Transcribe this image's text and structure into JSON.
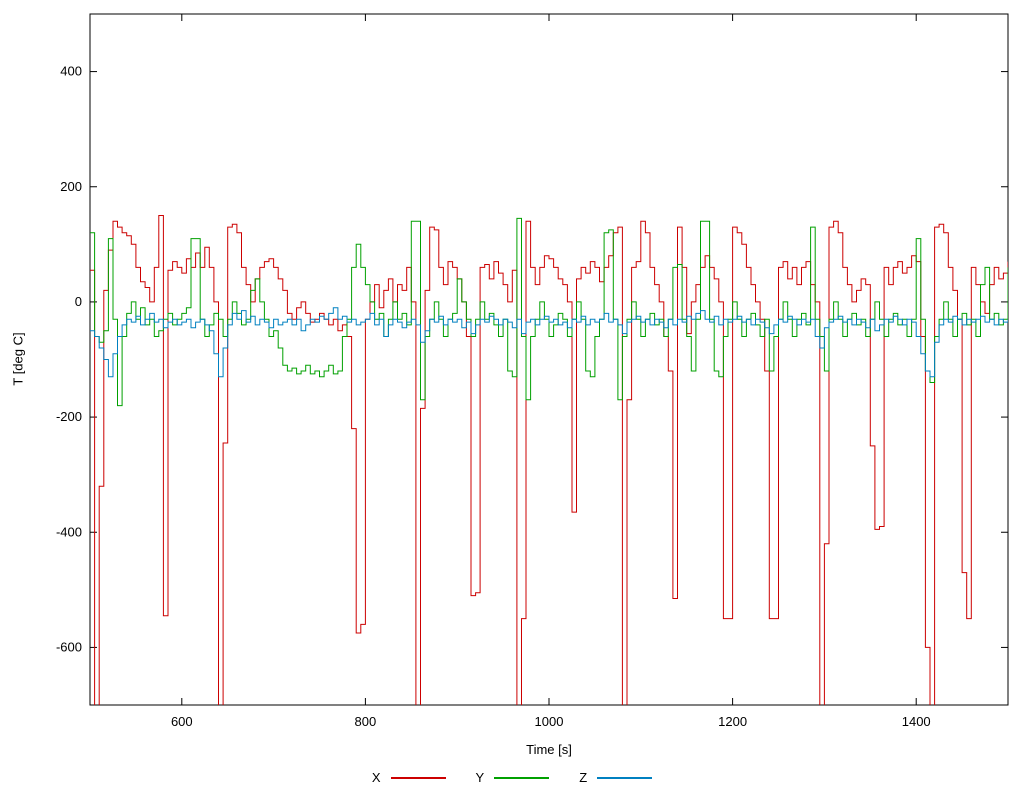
{
  "axes": {
    "xlabel": "Time [s]",
    "ylabel": "T [deg C]"
  },
  "chart_data": {
    "type": "line",
    "title": "",
    "xlabel": "Time [s]",
    "ylabel": "T [deg C]",
    "xlim": [
      500,
      1500
    ],
    "ylim": [
      -700,
      500
    ],
    "x_ticks": [
      600,
      800,
      1000,
      1200,
      1400
    ],
    "y_ticks": [
      400,
      200,
      0,
      -200,
      -400,
      -600
    ],
    "grid": false,
    "legend_position": "bottom",
    "line_style": "steps",
    "x": [
      500,
      505,
      510,
      515,
      520,
      525,
      530,
      535,
      540,
      545,
      550,
      555,
      560,
      565,
      570,
      575,
      580,
      585,
      590,
      595,
      600,
      605,
      610,
      615,
      620,
      625,
      630,
      635,
      640,
      645,
      650,
      655,
      660,
      665,
      670,
      675,
      680,
      685,
      690,
      695,
      700,
      705,
      710,
      715,
      720,
      725,
      730,
      735,
      740,
      745,
      750,
      755,
      760,
      765,
      770,
      775,
      780,
      785,
      790,
      795,
      800,
      805,
      810,
      815,
      820,
      825,
      830,
      835,
      840,
      845,
      850,
      855,
      860,
      865,
      870,
      875,
      880,
      885,
      890,
      895,
      900,
      905,
      910,
      915,
      920,
      925,
      930,
      935,
      940,
      945,
      950,
      955,
      960,
      965,
      970,
      975,
      980,
      985,
      990,
      995,
      1000,
      1005,
      1010,
      1015,
      1020,
      1025,
      1030,
      1035,
      1040,
      1045,
      1050,
      1055,
      1060,
      1065,
      1070,
      1075,
      1080,
      1085,
      1090,
      1095,
      1100,
      1105,
      1110,
      1115,
      1120,
      1125,
      1130,
      1135,
      1140,
      1145,
      1150,
      1155,
      1160,
      1165,
      1170,
      1175,
      1180,
      1185,
      1190,
      1195,
      1200,
      1205,
      1210,
      1215,
      1220,
      1225,
      1230,
      1235,
      1240,
      1245,
      1250,
      1255,
      1260,
      1265,
      1270,
      1275,
      1280,
      1285,
      1290,
      1295,
      1300,
      1305,
      1310,
      1315,
      1320,
      1325,
      1330,
      1335,
      1340,
      1345,
      1350,
      1355,
      1360,
      1365,
      1370,
      1375,
      1380,
      1385,
      1390,
      1395,
      1400,
      1405,
      1410,
      1415,
      1420,
      1425,
      1430,
      1435,
      1440,
      1445,
      1450,
      1455,
      1460,
      1465,
      1470,
      1475,
      1480,
      1485,
      1490,
      1495,
      1500
    ],
    "series": [
      {
        "name": "X",
        "color": "#cc0000",
        "values": [
          55,
          -750,
          -320,
          20,
          90,
          140,
          130,
          120,
          115,
          100,
          60,
          35,
          25,
          0,
          60,
          150,
          -545,
          55,
          70,
          60,
          50,
          75,
          60,
          85,
          60,
          95,
          60,
          0,
          -750,
          -245,
          130,
          135,
          120,
          60,
          30,
          0,
          40,
          60,
          70,
          75,
          60,
          40,
          20,
          -20,
          -30,
          -10,
          0,
          -20,
          -35,
          -30,
          -20,
          -30,
          -40,
          -30,
          -50,
          -40,
          -60,
          -220,
          -575,
          -560,
          -30,
          0,
          30,
          -10,
          20,
          40,
          0,
          30,
          20,
          60,
          0,
          -750,
          -185,
          20,
          130,
          125,
          60,
          30,
          70,
          60,
          40,
          0,
          -60,
          -510,
          -505,
          60,
          65,
          40,
          70,
          50,
          30,
          0,
          55,
          -750,
          -550,
          140,
          60,
          30,
          60,
          80,
          75,
          60,
          40,
          30,
          0,
          -365,
          40,
          60,
          50,
          70,
          60,
          35,
          60,
          80,
          120,
          130,
          -750,
          -170,
          60,
          70,
          140,
          120,
          60,
          30,
          0,
          -60,
          -120,
          -515,
          130,
          60,
          -55,
          0,
          30,
          60,
          80,
          60,
          40,
          0,
          -550,
          -550,
          130,
          120,
          100,
          60,
          30,
          0,
          -30,
          -120,
          -550,
          -550,
          60,
          70,
          40,
          60,
          30,
          60,
          70,
          30,
          0,
          -750,
          -420,
          130,
          140,
          120,
          60,
          30,
          0,
          20,
          40,
          30,
          -250,
          -395,
          -390,
          60,
          30,
          60,
          70,
          50,
          60,
          80,
          70,
          -60,
          -600,
          -750,
          130,
          135,
          120,
          60,
          20,
          -30,
          -470,
          -550,
          60,
          30,
          0,
          -20,
          30,
          60,
          40,
          50,
          70
        ]
      },
      {
        "name": "Y",
        "color": "#00a000",
        "values": [
          120,
          -60,
          -70,
          -50,
          110,
          -30,
          -180,
          -60,
          -20,
          0,
          -30,
          -10,
          -40,
          -30,
          -60,
          -50,
          -30,
          -20,
          -40,
          -30,
          -20,
          -10,
          110,
          110,
          -30,
          -60,
          -40,
          -20,
          -30,
          -60,
          -30,
          0,
          -20,
          -40,
          -30,
          20,
          40,
          0,
          -30,
          -60,
          -50,
          -80,
          -110,
          -120,
          -115,
          -125,
          -120,
          -110,
          -125,
          -120,
          -130,
          -120,
          -110,
          -125,
          -120,
          -60,
          -30,
          60,
          100,
          60,
          30,
          0,
          -30,
          -20,
          -60,
          -30,
          0,
          -30,
          -20,
          -40,
          140,
          140,
          -170,
          -60,
          -30,
          0,
          -30,
          -60,
          -30,
          -20,
          40,
          0,
          -30,
          -60,
          -30,
          0,
          -30,
          -20,
          -40,
          -60,
          -30,
          -120,
          -130,
          145,
          -60,
          -170,
          -60,
          -30,
          0,
          -30,
          -60,
          -40,
          -20,
          -30,
          -60,
          -30,
          0,
          -30,
          -120,
          -130,
          -60,
          -30,
          120,
          125,
          -30,
          -170,
          -60,
          -30,
          0,
          -30,
          -60,
          -30,
          -20,
          -40,
          -30,
          -60,
          -30,
          60,
          65,
          -30,
          -60,
          -120,
          -30,
          140,
          140,
          -30,
          -120,
          -130,
          -60,
          -30,
          0,
          -30,
          -60,
          -30,
          -20,
          -40,
          -60,
          -30,
          -120,
          -60,
          -30,
          0,
          -30,
          -60,
          -30,
          -20,
          -40,
          130,
          -30,
          -60,
          -120,
          -30,
          0,
          -30,
          -60,
          -30,
          -20,
          -40,
          -30,
          -60,
          -30,
          0,
          -30,
          -60,
          -30,
          -20,
          -40,
          -30,
          -60,
          -30,
          110,
          -30,
          -120,
          -140,
          -60,
          -30,
          0,
          -30,
          -60,
          -30,
          -20,
          -40,
          -30,
          -60,
          30,
          60,
          -30,
          -20,
          -40,
          -30,
          60
        ]
      },
      {
        "name": "Z",
        "color": "#0080c0",
        "values": [
          -50,
          -60,
          -80,
          -100,
          -130,
          -90,
          -60,
          -40,
          -30,
          -35,
          -25,
          -40,
          -30,
          -20,
          -35,
          -30,
          -45,
          -35,
          -30,
          -40,
          -35,
          -30,
          -45,
          -35,
          -30,
          -40,
          -50,
          -90,
          -130,
          -80,
          -40,
          -20,
          -30,
          -15,
          -35,
          -25,
          -40,
          -30,
          -35,
          -45,
          -30,
          -40,
          -35,
          -30,
          -40,
          -30,
          -50,
          -40,
          -30,
          -35,
          -25,
          -30,
          -20,
          -10,
          -30,
          -25,
          -35,
          -30,
          -40,
          -35,
          -30,
          -20,
          -40,
          -30,
          -60,
          -40,
          -30,
          -35,
          -45,
          -35,
          -30,
          -40,
          -70,
          -50,
          -30,
          -35,
          -25,
          -40,
          -30,
          -35,
          -30,
          -45,
          -35,
          -55,
          -40,
          -30,
          -35,
          -25,
          -30,
          -40,
          -30,
          -35,
          -45,
          -30,
          -55,
          -35,
          -30,
          -40,
          -30,
          -25,
          -35,
          -30,
          -40,
          -35,
          -45,
          -30,
          -35,
          -25,
          -40,
          -30,
          -35,
          -30,
          -20,
          -35,
          -30,
          -40,
          -55,
          -35,
          -30,
          -25,
          -35,
          -30,
          -40,
          -30,
          -35,
          -45,
          -30,
          -40,
          -30,
          -35,
          -25,
          -30,
          -20,
          -15,
          -30,
          -35,
          -25,
          -40,
          -30,
          -35,
          -30,
          -25,
          -35,
          -30,
          -40,
          -30,
          -35,
          -45,
          -55,
          -40,
          -30,
          -35,
          -25,
          -30,
          -40,
          -30,
          -35,
          -30,
          -60,
          -80,
          -45,
          -35,
          -30,
          -25,
          -35,
          -30,
          -40,
          -30,
          -35,
          -45,
          -30,
          -50,
          -40,
          -30,
          -35,
          -25,
          -30,
          -40,
          -30,
          -35,
          -60,
          -90,
          -120,
          -130,
          -70,
          -40,
          -30,
          -35,
          -25,
          -30,
          -40,
          -30,
          -35,
          -30,
          -25,
          -35,
          -30,
          -40,
          -30,
          -35,
          -30
        ]
      }
    ]
  }
}
